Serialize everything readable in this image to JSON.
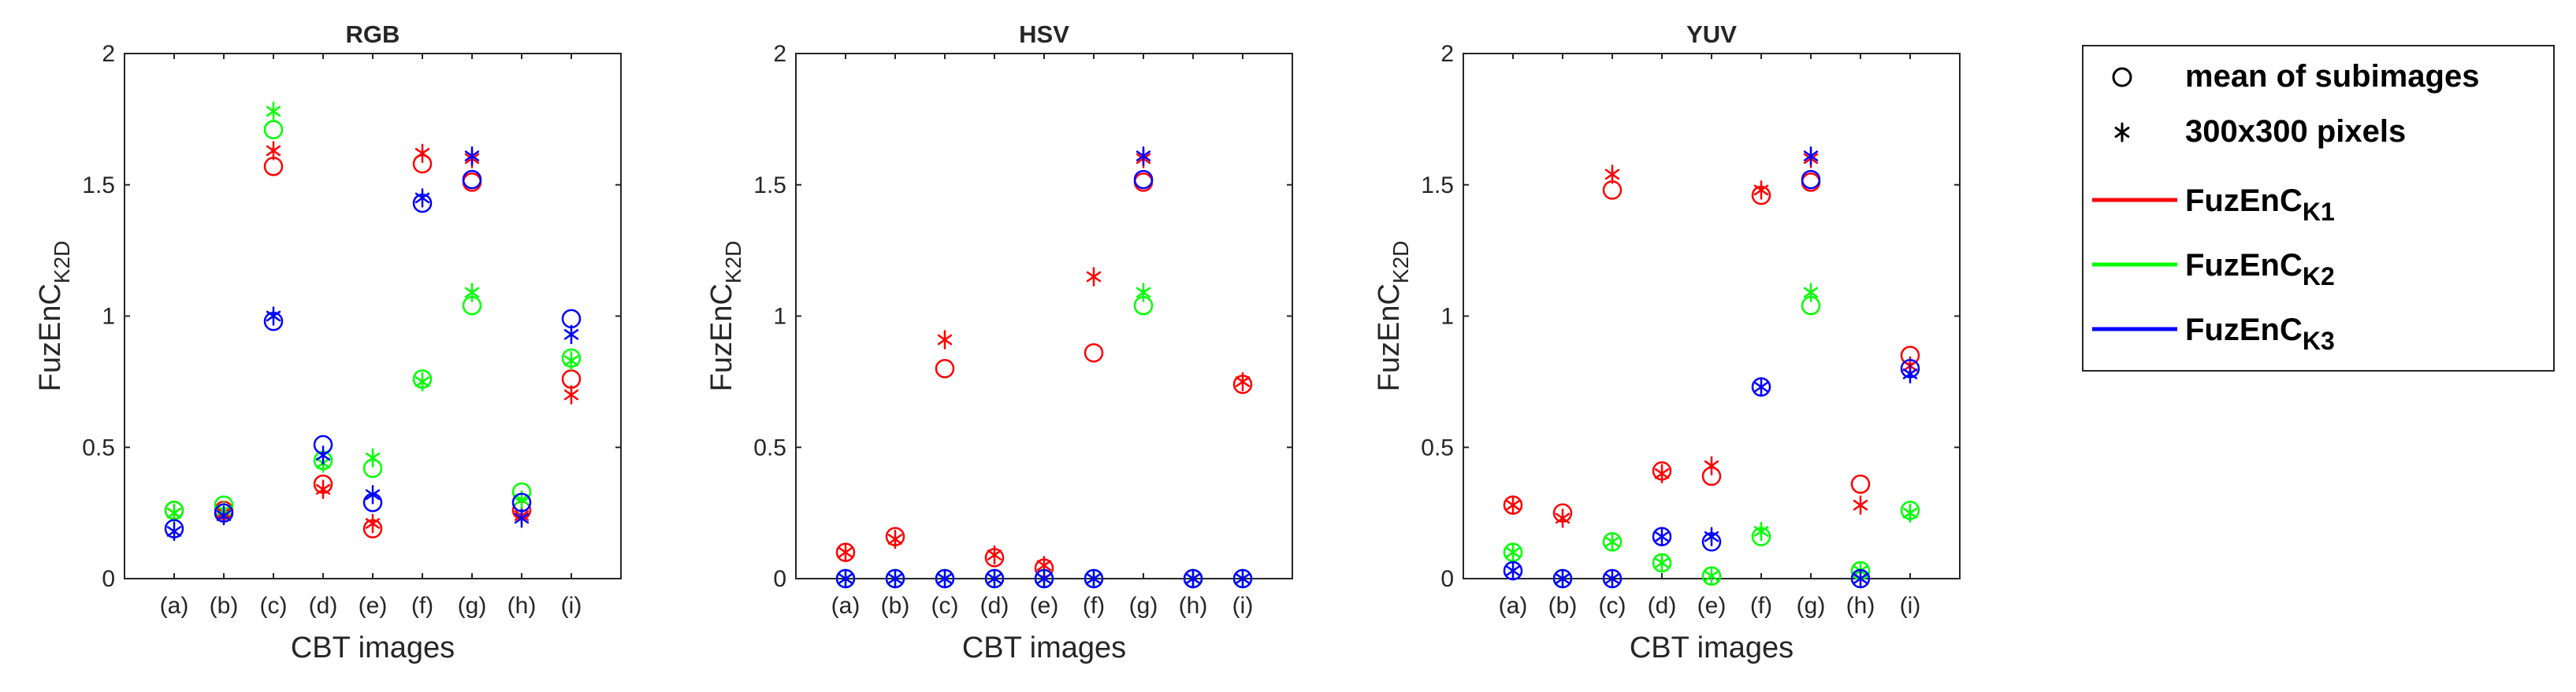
{
  "legend": {
    "markers": [
      {
        "label": "mean of subimages",
        "symbol": "circle"
      },
      {
        "label": "300x300 pixels",
        "symbol": "asterisk"
      }
    ],
    "lines": [
      {
        "label": "FuzEnC",
        "sub": "K1",
        "color": "#ff0000"
      },
      {
        "label": "FuzEnC",
        "sub": "K2",
        "color": "#00ff00"
      },
      {
        "label": "FuzEnC",
        "sub": "K3",
        "color": "#0000ff"
      }
    ],
    "placement": "right-outside"
  },
  "chart_data": [
    {
      "type": "scatter",
      "title": "RGB",
      "xlabel": "CBT images",
      "ylabel": {
        "main": "FuzEnC",
        "sub": "K2D"
      },
      "categories": [
        "(a)",
        "(b)",
        "(c)",
        "(d)",
        "(e)",
        "(f)",
        "(g)",
        "(h)",
        "(i)"
      ],
      "ylim": [
        0,
        2
      ],
      "yticks": [
        "0",
        "0.5",
        "1",
        "1.5",
        "2"
      ],
      "grid": false,
      "series": [
        {
          "name": "FuzEnCK1",
          "marker": "circle",
          "color": "#ff0000",
          "values": [
            0.26,
            0.26,
            1.57,
            0.36,
            0.19,
            1.58,
            1.51,
            0.26,
            0.76
          ]
        },
        {
          "name": "FuzEnCK1",
          "marker": "asterisk",
          "color": "#ff0000",
          "values": [
            0.25,
            0.25,
            1.63,
            0.34,
            0.21,
            1.62,
            1.6,
            0.24,
            0.7
          ]
        },
        {
          "name": "FuzEnCK2",
          "marker": "circle",
          "color": "#00ff00",
          "values": [
            0.26,
            0.28,
            1.71,
            0.45,
            0.42,
            0.76,
            1.04,
            0.33,
            0.84
          ]
        },
        {
          "name": "FuzEnCK2",
          "marker": "asterisk",
          "color": "#00ff00",
          "values": [
            0.25,
            0.26,
            1.78,
            0.44,
            0.46,
            0.75,
            1.09,
            0.3,
            0.83
          ]
        },
        {
          "name": "FuzEnCK3",
          "marker": "circle",
          "color": "#0000ff",
          "values": [
            0.19,
            0.25,
            0.98,
            0.51,
            0.29,
            1.43,
            1.52,
            0.29,
            0.99
          ]
        },
        {
          "name": "FuzEnCK3",
          "marker": "asterisk",
          "color": "#0000ff",
          "values": [
            0.18,
            0.24,
            1.0,
            0.47,
            0.32,
            1.45,
            1.61,
            0.23,
            0.93
          ]
        }
      ]
    },
    {
      "type": "scatter",
      "title": "HSV",
      "xlabel": "CBT images",
      "ylabel": {
        "main": "FuzEnC",
        "sub": "K2D"
      },
      "categories": [
        "(a)",
        "(b)",
        "(c)",
        "(d)",
        "(e)",
        "(f)",
        "(g)",
        "(h)",
        "(i)"
      ],
      "ylim": [
        0,
        2
      ],
      "yticks": [
        "0",
        "0.5",
        "1",
        "1.5",
        "2"
      ],
      "grid": false,
      "series": [
        {
          "name": "FuzEnCK1",
          "marker": "circle",
          "color": "#ff0000",
          "values": [
            0.1,
            0.16,
            0.8,
            0.08,
            0.04,
            0.86,
            1.51,
            0.0,
            0.74
          ]
        },
        {
          "name": "FuzEnCK1",
          "marker": "asterisk",
          "color": "#ff0000",
          "values": [
            0.1,
            0.15,
            0.91,
            0.09,
            0.05,
            1.15,
            1.6,
            0.0,
            0.75
          ]
        },
        {
          "name": "FuzEnCK2",
          "marker": "circle",
          "color": "#00ff00",
          "values": [
            0.0,
            0.0,
            0.0,
            0.0,
            0.0,
            0.0,
            1.04,
            0.0,
            0.0
          ]
        },
        {
          "name": "FuzEnCK2",
          "marker": "asterisk",
          "color": "#00ff00",
          "values": [
            0.0,
            0.0,
            0.0,
            0.0,
            0.0,
            0.0,
            1.09,
            0.0,
            0.0
          ]
        },
        {
          "name": "FuzEnCK3",
          "marker": "circle",
          "color": "#0000ff",
          "values": [
            0.0,
            0.0,
            0.0,
            0.0,
            0.0,
            0.0,
            1.52,
            0.0,
            0.0
          ]
        },
        {
          "name": "FuzEnCK3",
          "marker": "asterisk",
          "color": "#0000ff",
          "values": [
            0.0,
            0.0,
            0.0,
            0.0,
            0.0,
            0.0,
            1.61,
            0.0,
            0.0
          ]
        }
      ]
    },
    {
      "type": "scatter",
      "title": "YUV",
      "xlabel": "CBT images",
      "ylabel": {
        "main": "FuzEnC",
        "sub": "K2D"
      },
      "categories": [
        "(a)",
        "(b)",
        "(c)",
        "(d)",
        "(e)",
        "(f)",
        "(g)",
        "(h)",
        "(i)"
      ],
      "ylim": [
        0,
        2
      ],
      "yticks": [
        "0",
        "0.5",
        "1",
        "1.5",
        "2"
      ],
      "grid": false,
      "series": [
        {
          "name": "FuzEnCK1",
          "marker": "circle",
          "color": "#ff0000",
          "values": [
            0.28,
            0.25,
            1.48,
            0.41,
            0.39,
            1.46,
            1.51,
            0.36,
            0.85
          ]
        },
        {
          "name": "FuzEnCK1",
          "marker": "asterisk",
          "color": "#ff0000",
          "values": [
            0.28,
            0.23,
            1.54,
            0.4,
            0.43,
            1.48,
            1.6,
            0.28,
            0.81
          ]
        },
        {
          "name": "FuzEnCK2",
          "marker": "circle",
          "color": "#00ff00",
          "values": [
            0.1,
            0.0,
            0.14,
            0.06,
            0.01,
            0.16,
            1.04,
            0.03,
            0.26
          ]
        },
        {
          "name": "FuzEnCK2",
          "marker": "asterisk",
          "color": "#00ff00",
          "values": [
            0.1,
            0.0,
            0.14,
            0.06,
            0.01,
            0.18,
            1.09,
            0.03,
            0.25
          ]
        },
        {
          "name": "FuzEnCK3",
          "marker": "circle",
          "color": "#0000ff",
          "values": [
            0.03,
            0.0,
            0.0,
            0.16,
            0.14,
            0.73,
            1.52,
            0.0,
            0.8
          ]
        },
        {
          "name": "FuzEnCK3",
          "marker": "asterisk",
          "color": "#0000ff",
          "values": [
            0.03,
            0.0,
            0.0,
            0.16,
            0.16,
            0.73,
            1.61,
            0.0,
            0.78
          ]
        }
      ]
    }
  ]
}
